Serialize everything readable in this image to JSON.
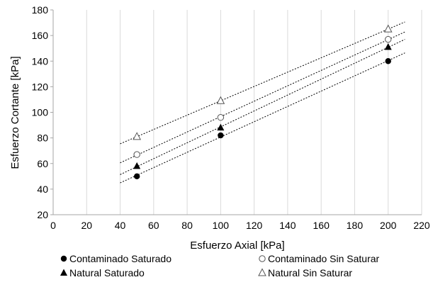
{
  "chart_data": {
    "type": "scatter",
    "xlabel": "Esfuerzo Axial [kPa]",
    "ylabel": "Esfuerzo Cortante [kPa]",
    "xlim": [
      0,
      220
    ],
    "ylim": [
      20,
      180
    ],
    "xticks": [
      0,
      20,
      40,
      60,
      80,
      100,
      120,
      140,
      160,
      180,
      200,
      220
    ],
    "yticks": [
      20,
      40,
      60,
      80,
      100,
      120,
      140,
      160,
      180
    ],
    "grid": "vertical",
    "legend_position": "bottom",
    "trendline": {
      "style": "dashed",
      "x_range": [
        40,
        210
      ]
    },
    "series": [
      {
        "name": "Contaminado Saturado",
        "marker": "filled-circle",
        "x": [
          50,
          100,
          200
        ],
        "y": [
          50,
          82,
          140
        ]
      },
      {
        "name": "Contaminado Sin Saturar",
        "marker": "open-circle",
        "x": [
          50,
          100,
          200
        ],
        "y": [
          67,
          96,
          157
        ]
      },
      {
        "name": "Natural Saturado",
        "marker": "filled-triangle",
        "x": [
          50,
          100,
          200
        ],
        "y": [
          58,
          88,
          151
        ]
      },
      {
        "name": "Natural Sin Saturar",
        "marker": "open-triangle",
        "x": [
          50,
          100,
          200
        ],
        "y": [
          81,
          109,
          165
        ]
      }
    ]
  }
}
